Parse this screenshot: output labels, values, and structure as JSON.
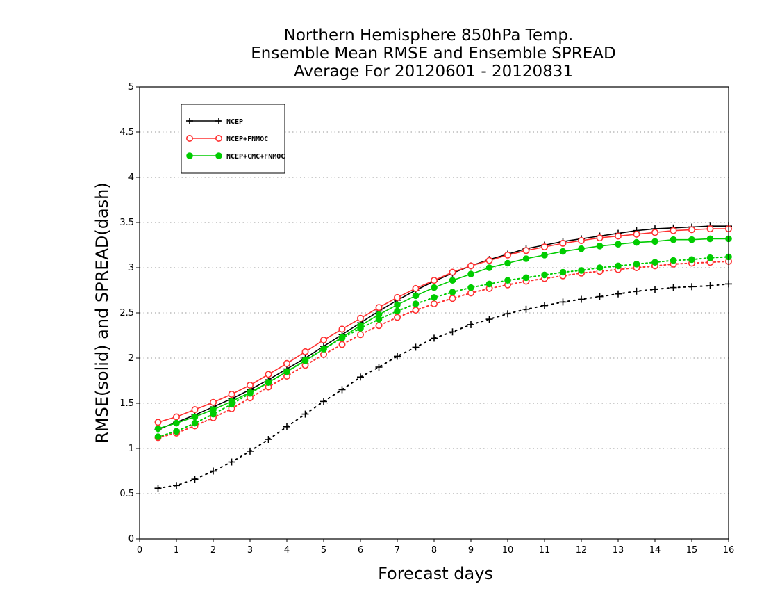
{
  "chart_data": {
    "type": "line",
    "title_lines": [
      "Northern Hemisphere 850hPa Temp.",
      "Ensemble Mean RMSE and Ensemble SPREAD",
      "Average For 20120601 - 20120831"
    ],
    "xlabel": "Forecast days",
    "ylabel": "RMSE(solid) and SPREAD(dash)",
    "xlim": [
      0,
      16
    ],
    "ylim": [
      0,
      5
    ],
    "xticks": [
      "0",
      "1",
      "2",
      "3",
      "4",
      "5",
      "6",
      "7",
      "8",
      "9",
      "10",
      "11",
      "12",
      "13",
      "14",
      "15",
      "16"
    ],
    "yticks": [
      "0",
      "0.5",
      "1",
      "1.5",
      "2",
      "2.5",
      "3",
      "3.5",
      "4",
      "4.5",
      "5"
    ],
    "grid": "horizontal-dotted",
    "legend_position": "top-left",
    "x": [
      0.5,
      1,
      1.5,
      2,
      2.5,
      3,
      3.5,
      4,
      4.5,
      5,
      5.5,
      6,
      6.5,
      7,
      7.5,
      8,
      8.5,
      9,
      9.5,
      10,
      10.5,
      11,
      11.5,
      12,
      12.5,
      13,
      13.5,
      14,
      14.5,
      15,
      15.5,
      16
    ],
    "series": [
      {
        "name": "NCEP",
        "color": "#000000",
        "marker": "plus",
        "rmse": [
          1.21,
          1.29,
          1.37,
          1.46,
          1.55,
          1.65,
          1.76,
          1.88,
          2.0,
          2.13,
          2.26,
          2.39,
          2.52,
          2.64,
          2.75,
          2.85,
          2.94,
          3.02,
          3.09,
          3.15,
          3.21,
          3.25,
          3.29,
          3.32,
          3.35,
          3.38,
          3.41,
          3.43,
          3.44,
          3.45,
          3.46,
          3.46
        ],
        "spread": [
          0.56,
          0.59,
          0.66,
          0.75,
          0.85,
          0.97,
          1.1,
          1.24,
          1.38,
          1.52,
          1.65,
          1.79,
          1.9,
          2.02,
          2.12,
          2.22,
          2.29,
          2.37,
          2.43,
          2.49,
          2.54,
          2.58,
          2.62,
          2.65,
          2.68,
          2.71,
          2.74,
          2.76,
          2.78,
          2.79,
          2.8,
          2.82
        ]
      },
      {
        "name": "NCEP+FNMOC",
        "color": "#ff3030",
        "marker": "open-circle",
        "rmse": [
          1.29,
          1.35,
          1.43,
          1.51,
          1.6,
          1.7,
          1.82,
          1.94,
          2.07,
          2.2,
          2.32,
          2.44,
          2.56,
          2.67,
          2.77,
          2.86,
          2.95,
          3.02,
          3.08,
          3.14,
          3.19,
          3.23,
          3.27,
          3.3,
          3.33,
          3.35,
          3.37,
          3.39,
          3.41,
          3.42,
          3.43,
          3.43
        ],
        "spread": [
          1.12,
          1.17,
          1.25,
          1.34,
          1.44,
          1.56,
          1.68,
          1.8,
          1.92,
          2.04,
          2.15,
          2.26,
          2.36,
          2.45,
          2.53,
          2.6,
          2.66,
          2.72,
          2.77,
          2.81,
          2.85,
          2.88,
          2.91,
          2.94,
          2.96,
          2.98,
          3.0,
          3.02,
          3.04,
          3.05,
          3.06,
          3.07
        ]
      },
      {
        "name": "NCEP+CMC+FNMOC",
        "color": "#00cc00",
        "marker": "filled-circle",
        "rmse": [
          1.22,
          1.28,
          1.35,
          1.43,
          1.52,
          1.62,
          1.73,
          1.85,
          1.97,
          2.1,
          2.23,
          2.36,
          2.48,
          2.59,
          2.69,
          2.78,
          2.86,
          2.93,
          3.0,
          3.05,
          3.1,
          3.14,
          3.18,
          3.21,
          3.24,
          3.26,
          3.28,
          3.29,
          3.31,
          3.31,
          3.32,
          3.32
        ],
        "spread": [
          1.13,
          1.19,
          1.28,
          1.38,
          1.49,
          1.61,
          1.73,
          1.85,
          1.98,
          2.1,
          2.22,
          2.33,
          2.43,
          2.52,
          2.6,
          2.67,
          2.73,
          2.78,
          2.82,
          2.86,
          2.89,
          2.92,
          2.95,
          2.97,
          3.0,
          3.02,
          3.04,
          3.06,
          3.08,
          3.09,
          3.11,
          3.12
        ]
      }
    ]
  }
}
